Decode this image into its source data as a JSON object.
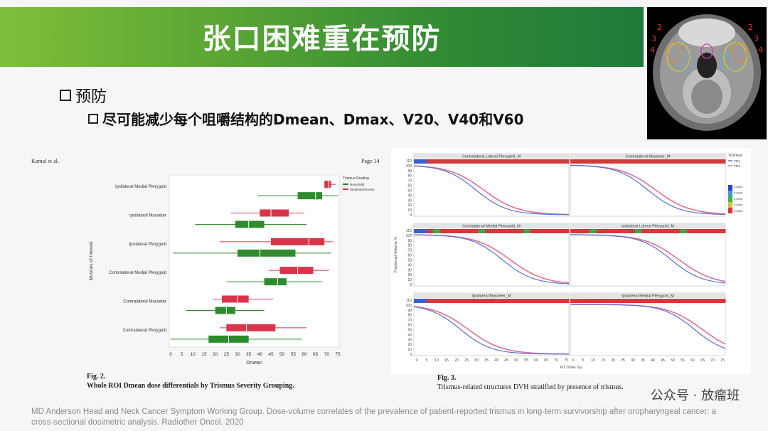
{
  "title": "张口困难重在预防",
  "bullet1": "预防",
  "bullet2": "尽可能减少每个咀嚼结构的Dmean、Dmax、V20、V40和V60",
  "ct_labels": [
    "2",
    "3",
    "4",
    "2",
    "3",
    "4"
  ],
  "left_figure": {
    "header_left": "Kamal et al.",
    "header_right": "Page 14",
    "fig_label": "Fig. 2.",
    "caption": "Whole ROI Dmean dose differentials by Trismus Severity Grouping.",
    "legend_title": "Trismus Grading",
    "legend_items": [
      "None/Mild",
      "Moderate/Severe"
    ],
    "ylabel": "Muscles of Interest",
    "xlabel": "Dmean",
    "xticks": [
      "0",
      "5",
      "10",
      "15",
      "20",
      "25",
      "30",
      "35",
      "40",
      "45",
      "50",
      "55",
      "60",
      "65",
      "70",
      "75"
    ],
    "colors": {
      "none_mild": "#2e8b2e",
      "moderate_severe": "#d9344a"
    }
  },
  "chart_data": {
    "type": "box",
    "title": "",
    "xlabel": "Dmean",
    "ylabel": "Muscles of Interest",
    "xlim": [
      0,
      75
    ],
    "categories": [
      "Ipsilateral Medial Pterygoid",
      "Ipsilateral Masseter",
      "Ipsilateral Pterygoid",
      "Contralateral Medial Pterygoid",
      "Contralateral Masseter",
      "Contralateral Pterygoid"
    ],
    "series": [
      {
        "name": "Moderate/Severe",
        "boxes": [
          {
            "min": 69,
            "q1": 69,
            "median": 71,
            "q3": 72,
            "max": 74
          },
          {
            "min": 27,
            "q1": 40,
            "median": 45,
            "q3": 53,
            "max": 60
          },
          {
            "min": 22,
            "q1": 45,
            "median": 62,
            "q3": 69,
            "max": 73
          },
          {
            "min": 44,
            "q1": 49,
            "median": 57,
            "q3": 64,
            "max": 71
          },
          {
            "min": 19,
            "q1": 23,
            "median": 30,
            "q3": 35,
            "max": 46
          },
          {
            "min": 22,
            "q1": 25,
            "median": 34,
            "q3": 47,
            "max": 61
          }
        ]
      },
      {
        "name": "None/Mild",
        "boxes": [
          {
            "min": 39,
            "q1": 57,
            "median": 65,
            "q3": 68,
            "max": 75
          },
          {
            "min": 11,
            "q1": 29,
            "median": 35,
            "q3": 42,
            "max": 61
          },
          {
            "min": 1,
            "q1": 30,
            "median": 40,
            "q3": 56,
            "max": 72
          },
          {
            "min": 25,
            "q1": 42,
            "median": 48,
            "q3": 52,
            "max": 68
          },
          {
            "min": 7,
            "q1": 20,
            "median": 25,
            "q3": 29,
            "max": 42
          },
          {
            "min": 0,
            "q1": 17,
            "median": 26,
            "q3": 35,
            "max": 59
          }
        ]
      }
    ]
  },
  "right_figure": {
    "fig_label": "Fig. 3.",
    "caption": "Trismus-related structures DVH stratified by presence of trismus.",
    "panels": [
      "Contralateral Lateral Pterygoid_M",
      "Contralateral Masseter_M",
      "Contralateral Medial Pterygoid_M",
      "Ipsilateral Lateral Pterygoid_M",
      "Ipsilateral Masseter_M",
      "Ipsilateral Medial Pterygoid_M"
    ],
    "yticks": [
      "110",
      "100",
      "90",
      "80",
      "70",
      "60",
      "50",
      "40",
      "30",
      "20",
      "10",
      "0"
    ],
    "xticks": [
      "0",
      "5",
      "10",
      "15",
      "20",
      "25",
      "30",
      "35",
      "40",
      "45",
      "50",
      "55",
      "60",
      "65",
      "70",
      "75"
    ],
    "ylabel": "Fractional Volume %",
    "xlabel": "RT Dose Gy",
    "legend_title": "Trismus",
    "legend_items": [
      "TG1",
      "TG2"
    ],
    "colorbar_ticks": [
      "0.0500",
      "0.0200",
      "0.0100",
      "0.0050",
      "0.0000"
    ]
  },
  "citation": "MD Anderson Head and Neck Cancer Symptom Working Group. Dose-volume correlates of the prevalence of patient-reported trismus in long-term survivorship after oropharyngeal cancer: a cross-sectional dosimetric analysis. Radiother Oncol. 2020",
  "watermark": "公众号 · 放瘤班"
}
